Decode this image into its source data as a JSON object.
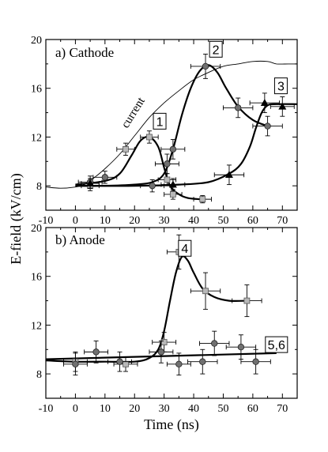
{
  "chart_data": {
    "type": "scatter",
    "ylabel": "E-field (kV/cm)",
    "xlabel": "Time (ns)",
    "x_ticks": [
      -10,
      0,
      10,
      20,
      30,
      40,
      50,
      60,
      70
    ],
    "xlim": [
      -10,
      75
    ],
    "panels": [
      {
        "label": "a) Cathode",
        "ylim": [
          6,
          20
        ],
        "y_ticks": [
          8,
          12,
          16,
          20
        ],
        "note": "current",
        "tags": [
          {
            "text": "1",
            "x": 28.5,
            "y": 13.3
          },
          {
            "text": "2",
            "x": 47.5,
            "y": 19.2
          },
          {
            "text": "3",
            "x": 69.5,
            "y": 16.2
          }
        ],
        "series": [
          {
            "marker": "square",
            "points": [
              {
                "x": 5,
                "y": 8.0,
                "xerr": 3,
                "yerr": 0.4
              },
              {
                "x": 17,
                "y": 11.0,
                "xerr": 3,
                "yerr": 0.5
              },
              {
                "x": 25,
                "y": 12.0,
                "xerr": 3,
                "yerr": 0.5
              },
              {
                "x": 31,
                "y": 8.5,
                "xerr": 3,
                "yerr": 0.5
              },
              {
                "x": 33,
                "y": 7.3,
                "xerr": 3,
                "yerr": 0.4
              },
              {
                "x": 43,
                "y": 6.9,
                "xerr": 3,
                "yerr": 0.3
              }
            ]
          },
          {
            "marker": "circle",
            "points": [
              {
                "x": 5,
                "y": 8.3,
                "xerr": 4,
                "yerr": 0.5
              },
              {
                "x": 10,
                "y": 8.7,
                "xerr": 4,
                "yerr": 0.5
              },
              {
                "x": 26,
                "y": 8.0,
                "xerr": 4,
                "yerr": 0.5
              },
              {
                "x": 31,
                "y": 9.8,
                "xerr": 4,
                "yerr": 0.8
              },
              {
                "x": 33,
                "y": 11.0,
                "xerr": 4,
                "yerr": 0.8
              },
              {
                "x": 44,
                "y": 17.8,
                "xerr": 5,
                "yerr": 1.0
              },
              {
                "x": 55,
                "y": 14.4,
                "xerr": 5,
                "yerr": 0.8
              },
              {
                "x": 65,
                "y": 12.9,
                "xerr": 5,
                "yerr": 0.8
              }
            ]
          },
          {
            "marker": "triangle",
            "points": [
              {
                "x": 5,
                "y": 8.2,
                "xerr": 3,
                "yerr": 0.4
              },
              {
                "x": 33,
                "y": 8.1,
                "xerr": 4,
                "yerr": 0.5
              },
              {
                "x": 52,
                "y": 8.9,
                "xerr": 5,
                "yerr": 0.8
              },
              {
                "x": 64,
                "y": 14.8,
                "xerr": 5,
                "yerr": 0.8
              },
              {
                "x": 70,
                "y": 14.5,
                "xerr": 4,
                "yerr": 0.8
              }
            ]
          }
        ],
        "fit_curves": [
          {
            "name": "1",
            "points": [
              [
                0,
                8.1
              ],
              [
                10,
                8.4
              ],
              [
                15,
                9.0
              ],
              [
                19,
                10.5
              ],
              [
                22,
                11.7
              ],
              [
                25,
                12.0
              ],
              [
                28,
                11.2
              ],
              [
                30,
                9.5
              ],
              [
                32,
                8.0
              ],
              [
                35,
                7.3
              ],
              [
                38,
                7.0
              ],
              [
                42,
                6.9
              ]
            ]
          },
          {
            "name": "2",
            "points": [
              [
                0,
                8.0
              ],
              [
                10,
                8.0
              ],
              [
                20,
                8.1
              ],
              [
                26,
                8.3
              ],
              [
                30,
                9.0
              ],
              [
                33,
                11.0
              ],
              [
                36,
                13.8
              ],
              [
                39,
                16.0
              ],
              [
                42,
                17.4
              ],
              [
                45,
                17.9
              ],
              [
                48,
                17.3
              ],
              [
                51,
                16.0
              ],
              [
                55,
                14.5
              ],
              [
                60,
                13.4
              ],
              [
                65,
                12.9
              ]
            ]
          },
          {
            "name": "3",
            "points": [
              [
                0,
                8.0
              ],
              [
                20,
                8.0
              ],
              [
                35,
                8.1
              ],
              [
                45,
                8.3
              ],
              [
                52,
                9.0
              ],
              [
                56,
                9.8
              ],
              [
                59,
                11.2
              ],
              [
                61,
                12.7
              ],
              [
                63,
                14.0
              ],
              [
                65,
                14.6
              ],
              [
                68,
                14.7
              ],
              [
                75,
                14.7
              ]
            ]
          },
          {
            "name": "current",
            "points": [
              [
                -10,
                7.9
              ],
              [
                -5,
                7.8
              ],
              [
                0,
                7.9
              ],
              [
                3,
                8.1
              ],
              [
                6,
                8.6
              ],
              [
                10,
                9.4
              ],
              [
                15,
                10.6
              ],
              [
                20,
                12.1
              ],
              [
                25,
                13.6
              ],
              [
                30,
                14.8
              ],
              [
                35,
                15.8
              ],
              [
                40,
                16.7
              ],
              [
                45,
                17.3
              ],
              [
                50,
                17.8
              ],
              [
                55,
                18.0
              ],
              [
                60,
                18.2
              ],
              [
                65,
                18.2
              ],
              [
                68,
                18.0
              ],
              [
                72,
                18.0
              ],
              [
                75,
                18.0
              ]
            ]
          }
        ]
      },
      {
        "label": "b) Anode",
        "ylim": [
          6,
          20
        ],
        "y_ticks": [
          8,
          12,
          16,
          20
        ],
        "tags": [
          {
            "text": "4",
            "x": 37,
            "y": 18.3
          },
          {
            "text": "5,6",
            "x": 68,
            "y": 10.4
          }
        ],
        "series": [
          {
            "marker": "square",
            "points": [
              {
                "x": 0,
                "y": 9.0,
                "xerr": 4,
                "yerr": 0.8
              },
              {
                "x": 17,
                "y": 8.8,
                "xerr": 4,
                "yerr": 0.6
              },
              {
                "x": 30,
                "y": 10.6,
                "xerr": 4,
                "yerr": 0.8
              },
              {
                "x": 35,
                "y": 18.0,
                "xerr": 4,
                "yerr": 1.4
              },
              {
                "x": 44,
                "y": 14.8,
                "xerr": 5,
                "yerr": 1.5
              },
              {
                "x": 58,
                "y": 14.0,
                "xerr": 5,
                "yerr": 1.3
              }
            ]
          },
          {
            "marker": "circle",
            "points": [
              {
                "x": 0,
                "y": 8.8,
                "xerr": 4,
                "yerr": 0.9
              },
              {
                "x": 7,
                "y": 9.8,
                "xerr": 4,
                "yerr": 0.9
              },
              {
                "x": 15,
                "y": 9.0,
                "xerr": 4,
                "yerr": 0.8
              },
              {
                "x": 29,
                "y": 9.8,
                "xerr": 4,
                "yerr": 0.9
              },
              {
                "x": 35,
                "y": 8.8,
                "xerr": 4,
                "yerr": 0.9
              },
              {
                "x": 43,
                "y": 9.0,
                "xerr": 5,
                "yerr": 1.0
              },
              {
                "x": 47,
                "y": 10.5,
                "xerr": 5,
                "yerr": 1.0
              },
              {
                "x": 56,
                "y": 10.2,
                "xerr": 5,
                "yerr": 1.0
              },
              {
                "x": 61,
                "y": 9.0,
                "xerr": 5,
                "yerr": 1.0
              }
            ]
          }
        ],
        "fit_curves": [
          {
            "name": "4",
            "points": [
              [
                -10,
                9.1
              ],
              [
                0,
                9.0
              ],
              [
                10,
                9.0
              ],
              [
                20,
                9.0
              ],
              [
                25,
                9.3
              ],
              [
                28,
                10.0
              ],
              [
                30,
                11.5
              ],
              [
                32,
                14.0
              ],
              [
                34,
                16.3
              ],
              [
                36,
                17.6
              ],
              [
                38,
                17.3
              ],
              [
                40,
                16.3
              ],
              [
                43,
                15.0
              ],
              [
                47,
                14.3
              ],
              [
                52,
                14.0
              ],
              [
                58,
                14.0
              ]
            ]
          },
          {
            "name": "5,6",
            "points": [
              [
                -10,
                9.2
              ],
              [
                68,
                9.7
              ]
            ]
          }
        ]
      }
    ]
  }
}
